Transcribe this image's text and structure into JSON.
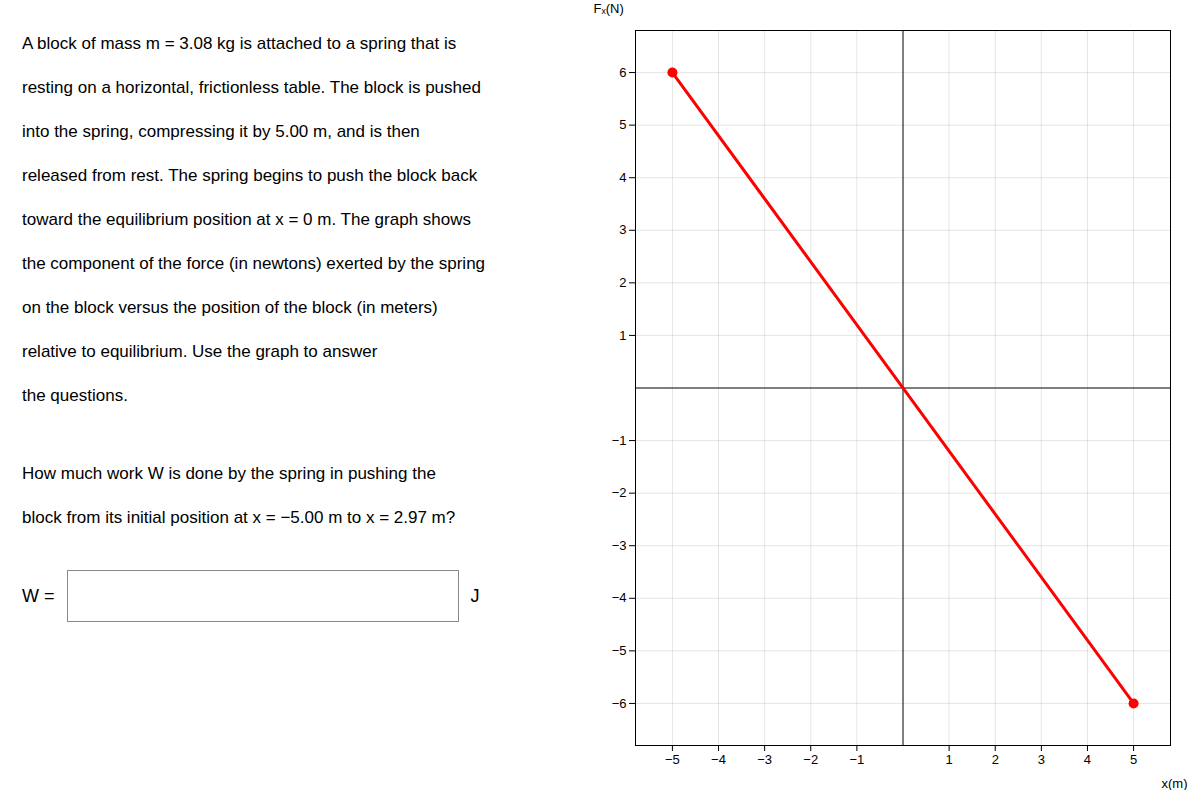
{
  "chart_data": {
    "type": "line",
    "x_label": "x(m)",
    "y_label": "Fₓ(N)",
    "x": [
      -5.0,
      5.0
    ],
    "series": [
      {
        "values": [
          6.0,
          -6.0
        ],
        "color": "#ff0000",
        "marker": "circle"
      }
    ],
    "xlim": [
      -5.8,
      5.8
    ],
    "ylim": [
      -6.8,
      6.8
    ],
    "xticks": [
      -5,
      -4,
      -3,
      -2,
      -1,
      1,
      2,
      3,
      4,
      5
    ],
    "yticks": [
      -6,
      -5,
      -4,
      -3,
      -2,
      -1,
      1,
      2,
      3,
      4,
      5,
      6
    ],
    "grid": true,
    "annotations": {
      "paragraph": [
        "A block of mass m = 3.08 kg is attached to a spring that is",
        "resting on a horizontal, frictionless table. The block is pushed",
        "into the spring, compressing it by 5.00 m, and is then",
        "released from rest. The spring begins to push the block back",
        "toward the equilibrium position at x = 0 m. The graph shows",
        "the component of the force (in newtons) exerted by the spring",
        "on the block versus the position of the block (in meters)",
        "relative to equilibrium. Use the graph to answer",
        "the questions."
      ],
      "questions": [
        {
          "lines": [
            "How much work W is done by the spring in pushing the",
            "block from its initial position at x = −5.00 m to x = 2.97 m?"
          ],
          "answer_label": "W =",
          "unit": "J"
        }
      ]
    }
  }
}
